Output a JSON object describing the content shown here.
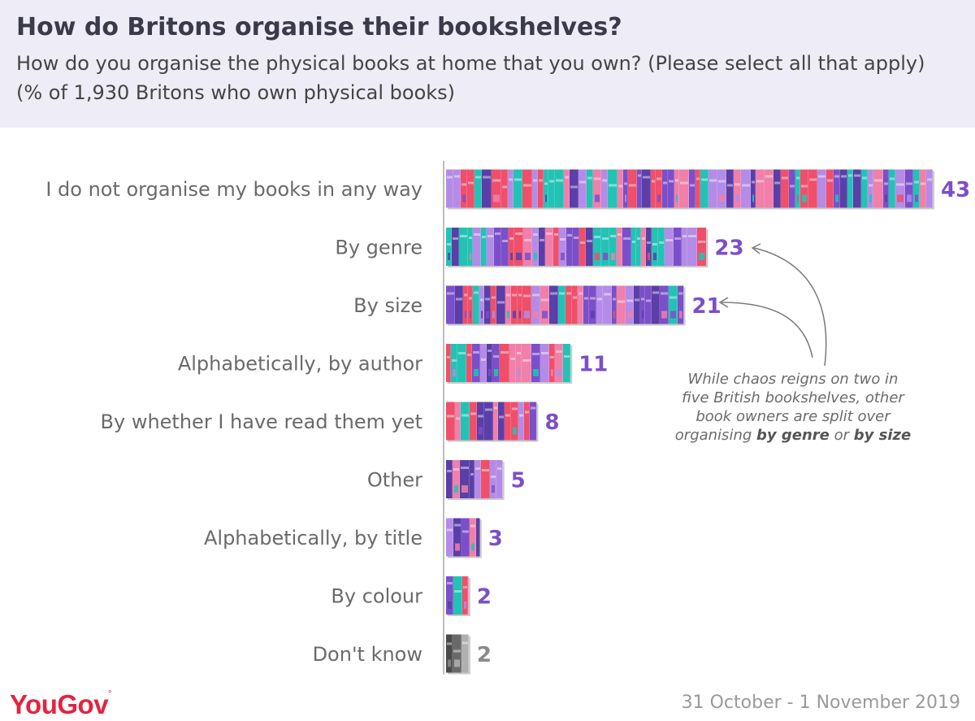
{
  "header": {
    "title": "How do Britons organise their bookshelves?",
    "subtitle": "How do you organise the physical books at home that you own? (Please select all that apply) (% of 1,930 Britons who own physical books)"
  },
  "chart_data": {
    "type": "bar",
    "orientation": "horizontal",
    "categories": [
      "I do not organise my books in any way",
      "By genre",
      "By size",
      "Alphabetically, by author",
      "By whether I have read them yet",
      "Other",
      "Alphabetically, by title",
      "By colour",
      "Don't know"
    ],
    "values": [
      43,
      23,
      21,
      11,
      8,
      5,
      3,
      2,
      2
    ],
    "value_labels": [
      "43",
      "23",
      "21",
      "11",
      "8",
      "5",
      "3",
      "2",
      "2"
    ],
    "xlim": [
      0,
      43
    ],
    "grid": false,
    "bar_style": "bookshelf",
    "colors": {
      "book_palette": [
        "#7b4fc9",
        "#ef4f6a",
        "#23c2b5",
        "#b48be6",
        "#f07fa9",
        "#5a3fa8"
      ],
      "muted_palette": [
        "#4a4a4a",
        "#8a8a8a",
        "#6a6a6a",
        "#b0b0b0"
      ],
      "value_label": "#7b4fc9",
      "value_label_muted": "#8a8a8a"
    },
    "muted_categories": [
      "Don't know"
    ],
    "annotation": {
      "segments": [
        {
          "text": "While chaos reigns on two in five British bookshelves, other book owners are split over organising ",
          "bold": false
        },
        {
          "text": "by genre",
          "bold": true
        },
        {
          "text": " or ",
          "bold": false
        },
        {
          "text": "by size",
          "bold": true
        }
      ],
      "points_to": [
        "By genre",
        "By size"
      ]
    }
  },
  "footer": {
    "brand": "YouGov",
    "date": "31 October - 1 November 2019"
  }
}
